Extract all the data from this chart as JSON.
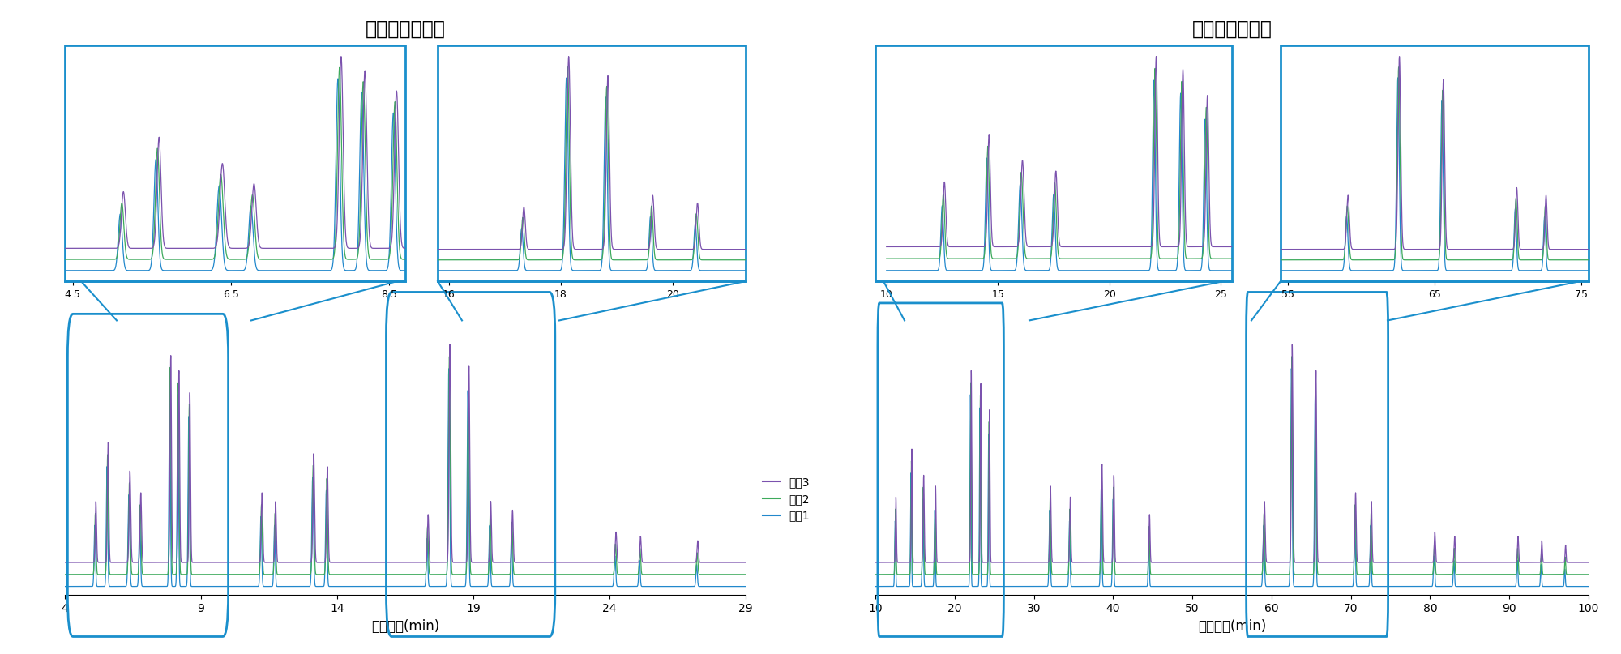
{
  "left_title": "高流速；陡梯度",
  "right_title": "低流速；缓梯度",
  "left_xlabel": "保留时间(min)",
  "right_xlabel": "保留时间(min)",
  "legend_labels": [
    "系统3",
    "系统2",
    "系统1"
  ],
  "colors": {
    "sys3": "#7B52AE",
    "sys2": "#3DAA5C",
    "sys1": "#2288CC"
  },
  "left_xlim": [
    4,
    29
  ],
  "left_xticks": [
    4,
    9,
    14,
    19,
    24,
    29
  ],
  "right_xlim": [
    10,
    100
  ],
  "right_xticks": [
    10,
    20,
    30,
    40,
    50,
    60,
    70,
    80,
    90,
    100
  ],
  "box_color": "#1A8FCC",
  "background_color": "#FFFFFF"
}
